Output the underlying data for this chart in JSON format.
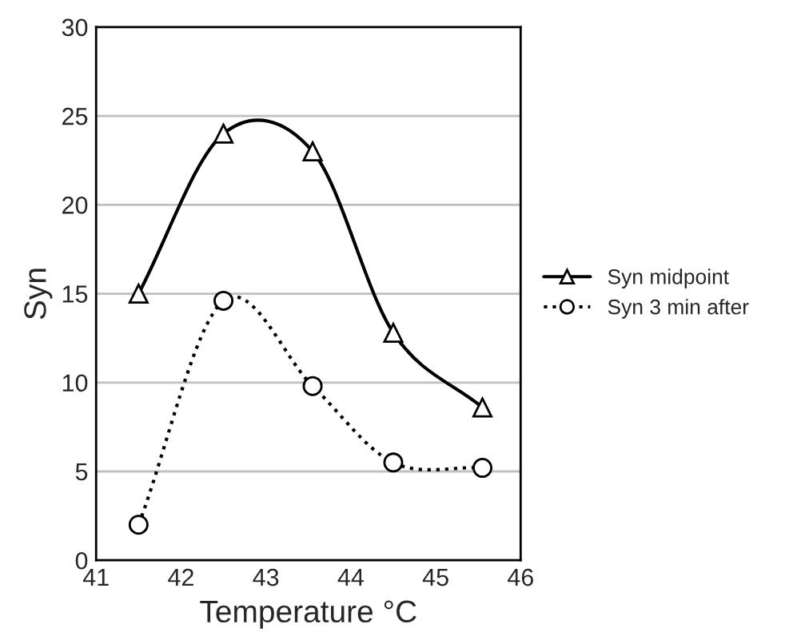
{
  "chart_data": {
    "type": "line",
    "xlabel": "Temperature °C",
    "ylabel": "Syn",
    "xlim": [
      41,
      46
    ],
    "xticks": [
      41,
      42,
      43,
      44,
      45,
      46
    ],
    "ylim": [
      0,
      30
    ],
    "yticks": [
      0,
      5,
      10,
      15,
      20,
      25,
      30
    ],
    "grid": "y",
    "legend": "right",
    "series": [
      {
        "name": "Syn midpoint",
        "color": "#000000",
        "marker": "triangle",
        "line_style": "solid",
        "x": [
          41.5,
          42.5,
          43.55,
          44.5,
          45.55
        ],
        "values": [
          15,
          24,
          23,
          12.8,
          8.6
        ]
      },
      {
        "name": "Syn 3 min after",
        "color": "#000000",
        "marker": "circle",
        "line_style": "dotted",
        "x": [
          41.5,
          42.5,
          43.55,
          44.5,
          45.55
        ],
        "values": [
          2,
          14.6,
          9.8,
          5.5,
          5.2
        ]
      }
    ]
  }
}
